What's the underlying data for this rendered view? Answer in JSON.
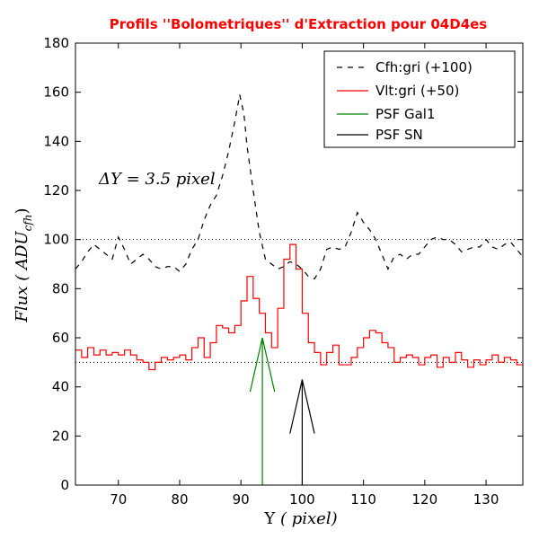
{
  "chart_data": {
    "type": "line",
    "title": "Profils ''Bolometriques'' d'Extraction pour 04D4es",
    "xlabel_prefix": "Y",
    "xlabel_unit": "( pixel)",
    "ylabel_prefix": "Flux",
    "ylabel_unit": "( ADU",
    "ylabel_sub": "cfh",
    "ylabel_close": ")",
    "xlim": [
      63,
      136
    ],
    "ylim": [
      0,
      180
    ],
    "xticks": [
      70,
      80,
      90,
      100,
      110,
      120,
      130
    ],
    "yticks": [
      0,
      20,
      40,
      60,
      80,
      100,
      120,
      140,
      160,
      180
    ],
    "reference_lines": [
      100,
      50
    ],
    "annotation": "ΔY = 3.5 pixel",
    "legend": [
      {
        "label": "Cfh:gri (+100)",
        "color": "#000000",
        "style": "dashed"
      },
      {
        "label": "Vlt:gri (+50)",
        "color": "#ff0000",
        "style": "solid"
      },
      {
        "label": "PSF Gal1",
        "color": "#008000",
        "style": "solid"
      },
      {
        "label": "PSF SN",
        "color": "#000000",
        "style": "solid"
      }
    ],
    "series": [
      {
        "name": "Cfh:gri (+100)",
        "color": "#000000",
        "style": "dashed",
        "x": [
          63,
          64,
          65,
          66,
          67,
          68,
          69,
          70,
          71,
          72,
          73,
          74,
          75,
          76,
          77,
          78,
          79,
          80,
          81,
          82,
          83,
          84,
          85,
          86,
          87,
          88,
          89,
          89.8,
          90.5,
          91,
          92,
          93,
          94,
          95,
          96,
          97,
          98,
          99,
          100,
          101,
          102,
          103,
          104,
          105,
          106,
          107,
          108,
          109,
          110,
          111,
          112,
          113,
          114,
          115,
          116,
          117,
          118,
          119,
          120,
          121,
          122,
          123,
          124,
          125,
          126,
          127,
          128,
          129,
          130,
          131,
          132,
          133,
          134,
          135,
          136
        ],
        "y": [
          88,
          91,
          95,
          98,
          96,
          94,
          92,
          101,
          96,
          90,
          92,
          94,
          92,
          89,
          88,
          89,
          89,
          87,
          90,
          96,
          100,
          108,
          114,
          118,
          126,
          136,
          148,
          159,
          151,
          138,
          120,
          103,
          92,
          90,
          88,
          89,
          91,
          90,
          88,
          85,
          84,
          88,
          96,
          97,
          96,
          97,
          103,
          111,
          107,
          104,
          100,
          94,
          88,
          93,
          94,
          92,
          94,
          94,
          97,
          100,
          101,
          100,
          100,
          98,
          95,
          96,
          97,
          97,
          100,
          97,
          96,
          98,
          99,
          96,
          93
        ]
      },
      {
        "name": "Vlt:gri (+50)",
        "color": "#ff0000",
        "style": "steps",
        "x": [
          63,
          64,
          65,
          66,
          67,
          68,
          69,
          70,
          71,
          72,
          73,
          74,
          75,
          76,
          77,
          78,
          79,
          80,
          81,
          82,
          83,
          84,
          85,
          86,
          87,
          88,
          89,
          90,
          91,
          92,
          93,
          94,
          95,
          96,
          97,
          98,
          99,
          100,
          101,
          102,
          103,
          104,
          105,
          106,
          107,
          108,
          109,
          110,
          111,
          112,
          113,
          114,
          115,
          116,
          117,
          118,
          119,
          120,
          121,
          122,
          123,
          124,
          125,
          126,
          127,
          128,
          129,
          130,
          131,
          132,
          133,
          134,
          135
        ],
        "y": [
          55,
          52,
          56,
          53,
          55,
          53,
          54,
          53,
          55,
          53,
          51,
          50,
          47,
          50,
          52,
          51,
          52,
          53,
          51,
          56,
          60,
          52,
          58,
          65,
          64,
          62,
          65,
          75,
          85,
          76,
          70,
          62,
          56,
          72,
          92,
          98,
          88,
          70,
          58,
          54,
          49,
          54,
          57,
          49,
          49,
          52,
          56,
          60,
          63,
          62,
          58,
          56,
          50,
          52,
          53,
          52,
          49,
          52,
          53,
          48,
          52,
          50,
          54,
          51,
          48,
          51,
          49,
          51,
          53,
          50,
          52,
          51,
          49
        ]
      }
    ],
    "psf_arrows": [
      {
        "name": "PSF Gal1",
        "color": "#008000",
        "x": 93.5,
        "y_tip": 60,
        "y_base": 0,
        "head_y": 38,
        "head_dx": 2
      },
      {
        "name": "PSF SN",
        "color": "#000000",
        "x": 100,
        "y_tip": 43,
        "y_base": 0,
        "head_y": 21,
        "head_dx": 2
      }
    ]
  }
}
